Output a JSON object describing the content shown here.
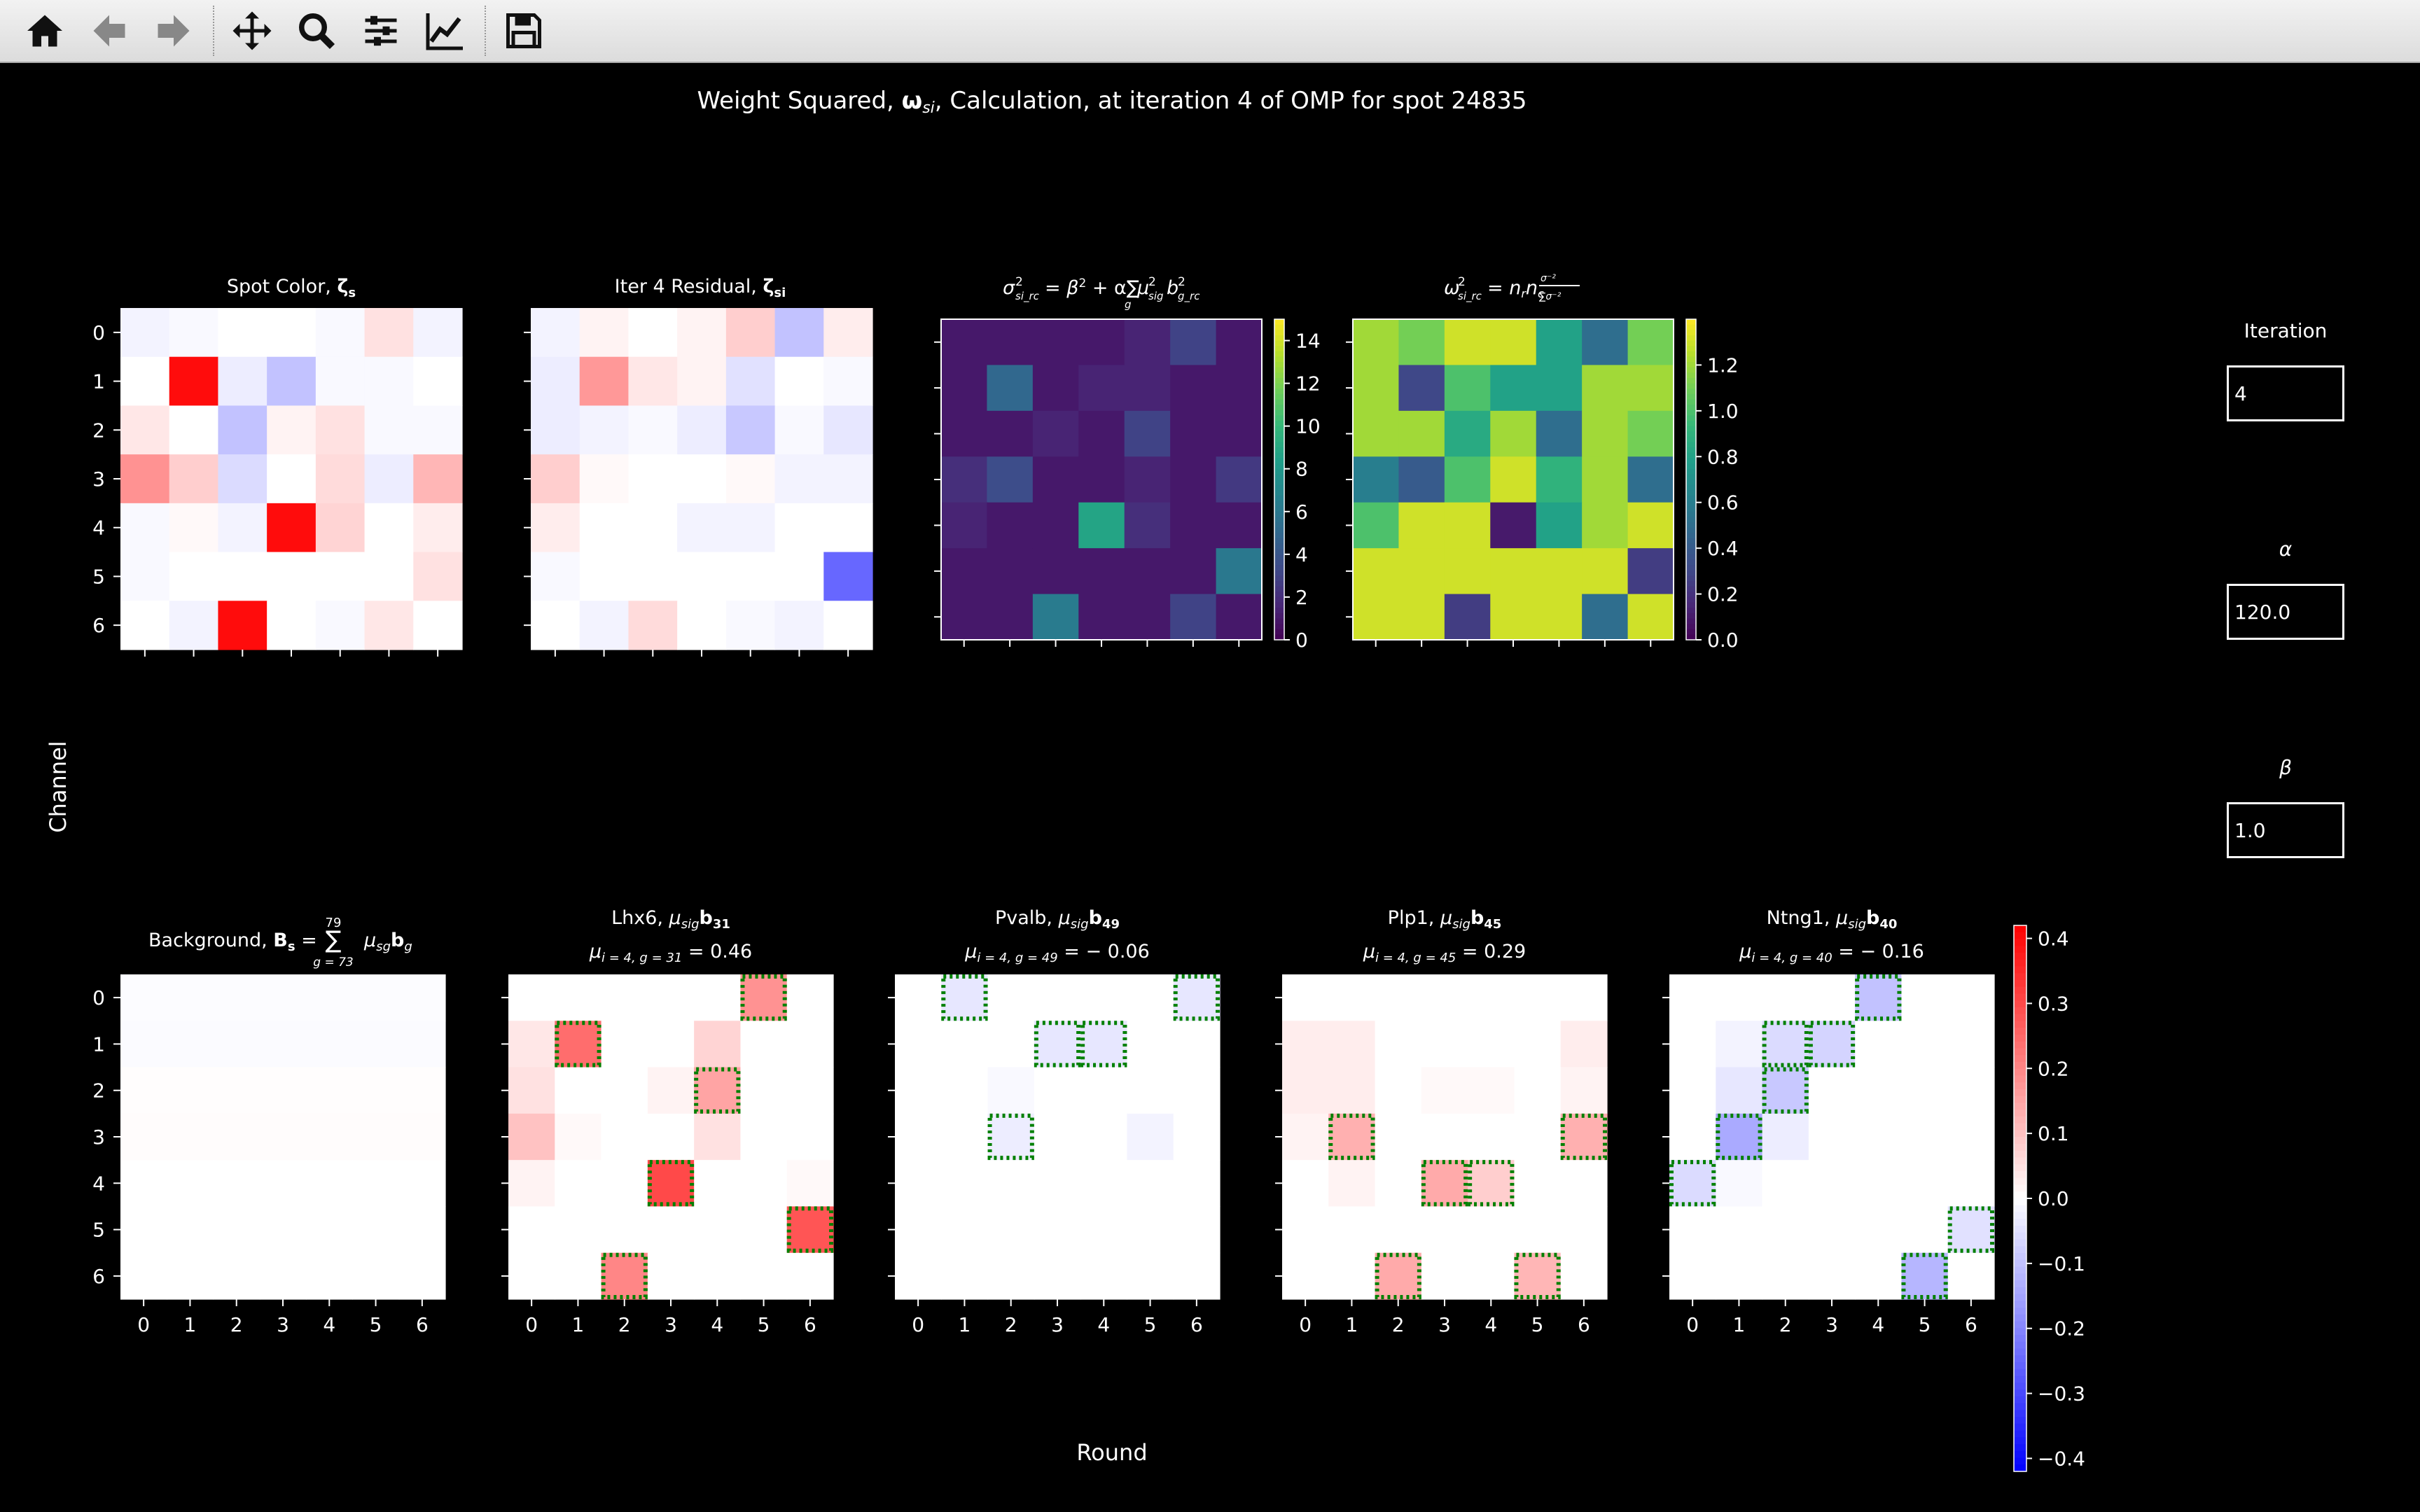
{
  "toolbar": {
    "items": [
      {
        "name": "home-button",
        "icon": "home-icon"
      },
      {
        "name": "back-button",
        "icon": "arrow-left-icon"
      },
      {
        "name": "forward-button",
        "icon": "arrow-right-icon"
      },
      {
        "name": "pan-button",
        "icon": "move-icon"
      },
      {
        "name": "zoom-button",
        "icon": "magnifier-icon"
      },
      {
        "name": "subplots-button",
        "icon": "sliders-icon"
      },
      {
        "name": "axes-button",
        "icon": "line-chart-icon"
      },
      {
        "name": "save-button",
        "icon": "floppy-disk-icon"
      }
    ]
  },
  "figure": {
    "title_pre": "Weight Squared, ",
    "title_omega": "ω",
    "title_sub": "si",
    "title_post": ", Calculation, at iteration 4 of OMP for spot 24835",
    "ylabel": "Channel",
    "xlabel": "Round"
  },
  "controls": {
    "iteration_label": "Iteration",
    "iteration_value": "4",
    "alpha_label": "α",
    "alpha_value": "120.0",
    "beta_label": "β",
    "beta_value": "1.0"
  },
  "colors": {
    "positive": "#ff0000",
    "negative": "#0000ff",
    "highlight": "#008000"
  },
  "chart_data": [
    {
      "type": "heatmap",
      "name": "spot-color",
      "colormap": "bwr",
      "vmin": -0.42,
      "vmax": 0.42,
      "title_pre": "Spot Color, ",
      "title_bold": "ζ",
      "title_bold_sub": "s",
      "y_ticklabels": [
        "0",
        "1",
        "2",
        "3",
        "4",
        "5",
        "6"
      ],
      "values": [
        [
          -0.02,
          -0.01,
          0,
          0,
          -0.01,
          0.05,
          -0.02
        ],
        [
          0,
          0.4,
          -0.03,
          -0.1,
          -0.01,
          -0.01,
          0
        ],
        [
          0.04,
          0,
          -0.1,
          0.02,
          0.05,
          -0.01,
          -0.01
        ],
        [
          0.18,
          0.08,
          -0.06,
          0,
          0.06,
          -0.03,
          0.12
        ],
        [
          -0.01,
          0.01,
          -0.02,
          0.4,
          0.07,
          0,
          0.03
        ],
        [
          -0.01,
          0,
          0,
          0,
          0,
          0,
          0.05
        ],
        [
          0,
          -0.02,
          0.4,
          0,
          -0.01,
          0.04,
          0
        ]
      ]
    },
    {
      "type": "heatmap",
      "name": "iter-residual",
      "colormap": "bwr",
      "vmin": -0.42,
      "vmax": 0.42,
      "title_pre": "Iter 4 Residual, ",
      "title_bold": "ζ",
      "title_bold_sub": "si",
      "values": [
        [
          -0.02,
          0.02,
          0,
          0.02,
          0.08,
          -0.1,
          0.03
        ],
        [
          -0.03,
          0.17,
          0.04,
          0.02,
          -0.05,
          0,
          -0.01
        ],
        [
          -0.03,
          -0.02,
          -0.01,
          -0.03,
          -0.09,
          -0.01,
          -0.04
        ],
        [
          0.08,
          0.01,
          0,
          0,
          0.01,
          -0.02,
          -0.02
        ],
        [
          0.03,
          0,
          0,
          -0.02,
          -0.02,
          0,
          0
        ],
        [
          -0.01,
          0,
          0,
          0,
          0,
          0,
          -0.25
        ],
        [
          0,
          -0.02,
          0.06,
          0,
          -0.01,
          -0.02,
          0
        ]
      ]
    },
    {
      "type": "heatmap",
      "name": "sigma-squared",
      "colormap": "viridis",
      "vmin": 0,
      "vmax": 15,
      "colorbar_ticks": [
        "0",
        "2",
        "4",
        "6",
        "8",
        "10",
        "12",
        "14"
      ],
      "values": [
        [
          1,
          1,
          1,
          1,
          1.5,
          3,
          1
        ],
        [
          1,
          5,
          1,
          1.5,
          1.5,
          1,
          1
        ],
        [
          1,
          1,
          1.5,
          1,
          3,
          1,
          1
        ],
        [
          2,
          3.5,
          1,
          1,
          1.5,
          1,
          2.5
        ],
        [
          1.5,
          1,
          1,
          8.7,
          2,
          1,
          1
        ],
        [
          1,
          1,
          1,
          1,
          1,
          1,
          6
        ],
        [
          1,
          1,
          6.2,
          1,
          1,
          3,
          1
        ]
      ]
    },
    {
      "type": "heatmap",
      "name": "omega-squared",
      "colormap": "viridis",
      "vmin": 0,
      "vmax": 1.4,
      "colorbar_ticks": [
        "0.0",
        "0.2",
        "0.4",
        "0.6",
        "0.8",
        "1.0",
        "1.2"
      ],
      "values": [
        [
          1.2,
          1.1,
          1.3,
          1.3,
          0.8,
          0.5,
          1.1
        ],
        [
          1.2,
          0.3,
          1.0,
          0.8,
          0.8,
          1.2,
          1.2
        ],
        [
          1.2,
          1.2,
          0.85,
          1.2,
          0.5,
          1.2,
          1.1
        ],
        [
          0.6,
          0.4,
          1.0,
          1.3,
          0.9,
          1.2,
          0.5
        ],
        [
          1.0,
          1.3,
          1.3,
          0.1,
          0.8,
          1.2,
          1.3
        ],
        [
          1.3,
          1.3,
          1.3,
          1.3,
          1.3,
          1.3,
          0.25
        ],
        [
          1.3,
          1.3,
          0.25,
          1.3,
          1.3,
          0.5,
          1.3
        ]
      ]
    },
    {
      "type": "heatmap",
      "name": "background",
      "colormap": "bwr",
      "vmin": -0.42,
      "vmax": 0.42,
      "title_pre": "Background, ",
      "title_bold": "B",
      "title_bold_sub": "s",
      "title_post": " = ",
      "sum_upper": "79",
      "sum_lower": "g = 73",
      "title_tail_mu": "μ",
      "title_tail_sub": "sg",
      "title_tail_b": "b",
      "title_tail_bsub": "g",
      "y_ticklabels": [
        "0",
        "1",
        "2",
        "3",
        "4",
        "5",
        "6"
      ],
      "x_ticklabels": [
        "0",
        "1",
        "2",
        "3",
        "4",
        "5",
        "6"
      ],
      "values": [
        [
          -0.005,
          -0.005,
          -0.005,
          -0.005,
          -0.005,
          -0.005,
          -0.005
        ],
        [
          -0.006,
          -0.006,
          -0.006,
          -0.006,
          -0.006,
          -0.006,
          -0.006
        ],
        [
          0.004,
          0.004,
          0.004,
          0.004,
          0.004,
          0.004,
          0.004
        ],
        [
          0.005,
          0.005,
          0.005,
          0.005,
          0.005,
          0.005,
          0.005
        ],
        [
          0,
          0,
          0,
          0,
          0,
          0,
          0
        ],
        [
          0,
          0,
          0,
          0,
          0,
          0,
          0
        ],
        [
          0,
          0,
          0,
          0,
          0,
          0,
          0
        ]
      ]
    },
    {
      "type": "heatmap",
      "name": "gene-lhx6",
      "colormap": "bwr",
      "vmin": -0.42,
      "vmax": 0.42,
      "gene": "Lhx6",
      "gene_index": "31",
      "coef_label": "i = 4, g = 31",
      "coef_value": "0.46",
      "x_ticklabels": [
        "0",
        "1",
        "2",
        "3",
        "4",
        "5",
        "6"
      ],
      "highlight": [
        [
          0,
          5
        ],
        [
          1,
          1
        ],
        [
          2,
          4
        ],
        [
          4,
          3
        ],
        [
          5,
          6
        ],
        [
          6,
          2
        ]
      ],
      "values": [
        [
          0,
          0,
          0,
          0,
          0,
          0.18,
          0
        ],
        [
          0.04,
          0.24,
          0,
          0,
          0.07,
          0,
          0
        ],
        [
          0.05,
          0,
          0,
          0.02,
          0.15,
          0,
          0
        ],
        [
          0.1,
          0.01,
          0,
          0,
          0.05,
          0,
          0
        ],
        [
          0.02,
          0,
          0,
          0.3,
          0,
          0,
          0.01
        ],
        [
          0,
          0,
          0,
          0,
          0,
          0,
          0.28
        ],
        [
          0,
          0,
          0.2,
          0,
          0,
          0,
          0
        ]
      ]
    },
    {
      "type": "heatmap",
      "name": "gene-pvalb",
      "colormap": "bwr",
      "vmin": -0.42,
      "vmax": 0.42,
      "gene": "Pvalb",
      "gene_index": "49",
      "coef_label": "i = 4, g = 49",
      "coef_value": "− 0.06",
      "x_ticklabels": [
        "0",
        "1",
        "2",
        "3",
        "4",
        "5",
        "6"
      ],
      "highlight": [
        [
          0,
          1
        ],
        [
          0,
          6
        ],
        [
          1,
          3
        ],
        [
          1,
          4
        ],
        [
          3,
          2
        ]
      ],
      "values": [
        [
          0,
          -0.04,
          0,
          0,
          0,
          0,
          -0.04
        ],
        [
          0,
          0,
          0,
          -0.04,
          -0.04,
          0,
          0
        ],
        [
          0,
          0,
          -0.01,
          0,
          0,
          0,
          0
        ],
        [
          0,
          0,
          -0.03,
          0,
          0,
          -0.02,
          0
        ],
        [
          0,
          0,
          0,
          0,
          0,
          0,
          0
        ],
        [
          0,
          0,
          0,
          0,
          0,
          0,
          0
        ],
        [
          0,
          0,
          0,
          0,
          0,
          0,
          0
        ]
      ]
    },
    {
      "type": "heatmap",
      "name": "gene-plp1",
      "colormap": "bwr",
      "vmin": -0.42,
      "vmax": 0.42,
      "gene": "Plp1",
      "gene_index": "45",
      "coef_label": "i = 4, g = 45",
      "coef_value": "0.29",
      "x_ticklabels": [
        "0",
        "1",
        "2",
        "3",
        "4",
        "5",
        "6"
      ],
      "highlight": [
        [
          3,
          1
        ],
        [
          3,
          6
        ],
        [
          4,
          3
        ],
        [
          4,
          4
        ],
        [
          6,
          2
        ],
        [
          6,
          5
        ]
      ],
      "values": [
        [
          0,
          0,
          0,
          0,
          0,
          0,
          0
        ],
        [
          0.03,
          0.03,
          0,
          0,
          0,
          0,
          0.03
        ],
        [
          0.03,
          0.03,
          0,
          0.01,
          0.01,
          0,
          0.02
        ],
        [
          0.02,
          0.13,
          0,
          0,
          0,
          0,
          0.13
        ],
        [
          0,
          0.02,
          0,
          0.14,
          0.08,
          0,
          0
        ],
        [
          0,
          0,
          0,
          0,
          0,
          0,
          0
        ],
        [
          0,
          0,
          0.14,
          0,
          0,
          0.12,
          0
        ]
      ]
    },
    {
      "type": "heatmap",
      "name": "gene-ntng1",
      "colormap": "bwr",
      "vmin": -0.42,
      "vmax": 0.42,
      "gene": "Ntng1",
      "gene_index": "40",
      "coef_label": "i = 4, g = 40",
      "coef_value": "− 0.16",
      "x_ticklabels": [
        "0",
        "1",
        "2",
        "3",
        "4",
        "5",
        "6"
      ],
      "highlight": [
        [
          0,
          4
        ],
        [
          1,
          2
        ],
        [
          1,
          3
        ],
        [
          2,
          2
        ],
        [
          3,
          1
        ],
        [
          4,
          0
        ],
        [
          5,
          6
        ],
        [
          6,
          5
        ]
      ],
      "values": [
        [
          0,
          0,
          0,
          0,
          -0.1,
          0,
          0
        ],
        [
          0,
          -0.02,
          -0.06,
          -0.07,
          0,
          0,
          0
        ],
        [
          0,
          -0.04,
          -0.09,
          0,
          0,
          0,
          0
        ],
        [
          0,
          -0.14,
          -0.03,
          0,
          0,
          0,
          0
        ],
        [
          -0.06,
          -0.01,
          0,
          0,
          0,
          0,
          0
        ],
        [
          0,
          0,
          0,
          0,
          0,
          0,
          -0.05
        ],
        [
          0,
          0,
          0,
          0,
          0,
          -0.12,
          0
        ]
      ]
    }
  ],
  "colorbar_main": {
    "ticks": [
      "0.4",
      "0.3",
      "0.2",
      "0.1",
      "0.0",
      "−0.1",
      "−0.2",
      "−0.3",
      "−0.4"
    ]
  }
}
